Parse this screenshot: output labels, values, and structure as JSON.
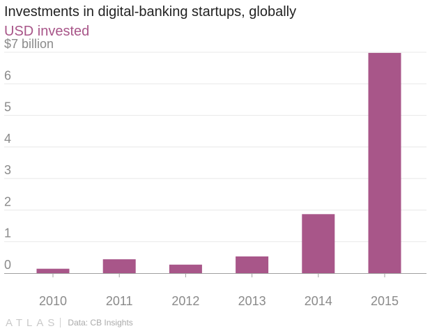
{
  "title": "Investments in digital-banking startups, globally",
  "subtitle": "USD invested",
  "source": "Data: CB Insights",
  "logo_text": "ATLAS",
  "colors": {
    "bar": "#a85689",
    "title": "#222222",
    "subtitle": "#a85689",
    "axis_text": "#8a8a8a",
    "grid": "#e8e8e8",
    "baseline": "#a0a0a0"
  },
  "chart_data": {
    "type": "bar",
    "title": "Investments in digital-banking startups, globally",
    "subtitle": "USD invested",
    "xlabel": "",
    "ylabel": "",
    "unit": "$ billion",
    "categories": [
      "2010",
      "2011",
      "2012",
      "2013",
      "2014",
      "2015"
    ],
    "values": [
      0.14,
      0.44,
      0.27,
      0.53,
      1.87,
      6.98
    ],
    "ylim": [
      0,
      7
    ],
    "yticks": [
      0,
      1,
      2,
      3,
      4,
      5,
      6,
      7
    ],
    "ytick_labels": [
      "0",
      "1",
      "2",
      "3",
      "4",
      "5",
      "6",
      "$7 billion"
    ],
    "grid": true,
    "legend": "none"
  }
}
